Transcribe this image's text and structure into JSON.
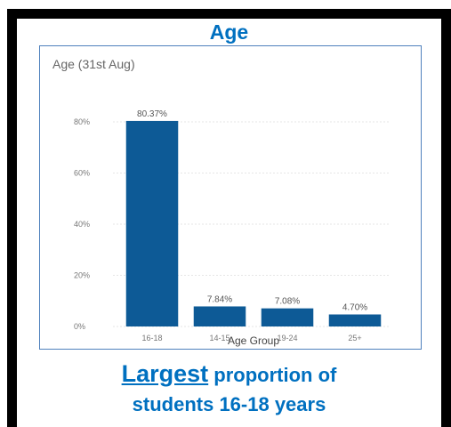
{
  "heading": "Age",
  "caption": {
    "lead": "Largest",
    "rest": " proportion of",
    "line2": "students 16-18 years"
  },
  "colors": {
    "heading": "#0070c0",
    "caption": "#0070c0",
    "bar": "#0d5a96",
    "box_border": "#4f81bd"
  },
  "chart_data": {
    "type": "bar",
    "title": "Age (31st Aug)",
    "xlabel": "Age Group",
    "ylabel": "",
    "categories": [
      "16-18",
      "14-15",
      "19-24",
      "25+"
    ],
    "values": [
      80.37,
      7.84,
      7.08,
      4.7
    ],
    "data_labels": [
      "80.37%",
      "7.84%",
      "7.08%",
      "4.70%"
    ],
    "yticks": [
      0,
      20,
      40,
      60,
      80
    ],
    "ytick_labels": [
      "0%",
      "20%",
      "40%",
      "60%",
      "80%"
    ],
    "ylim": [
      0,
      80
    ],
    "grid": true,
    "legend": "none"
  }
}
